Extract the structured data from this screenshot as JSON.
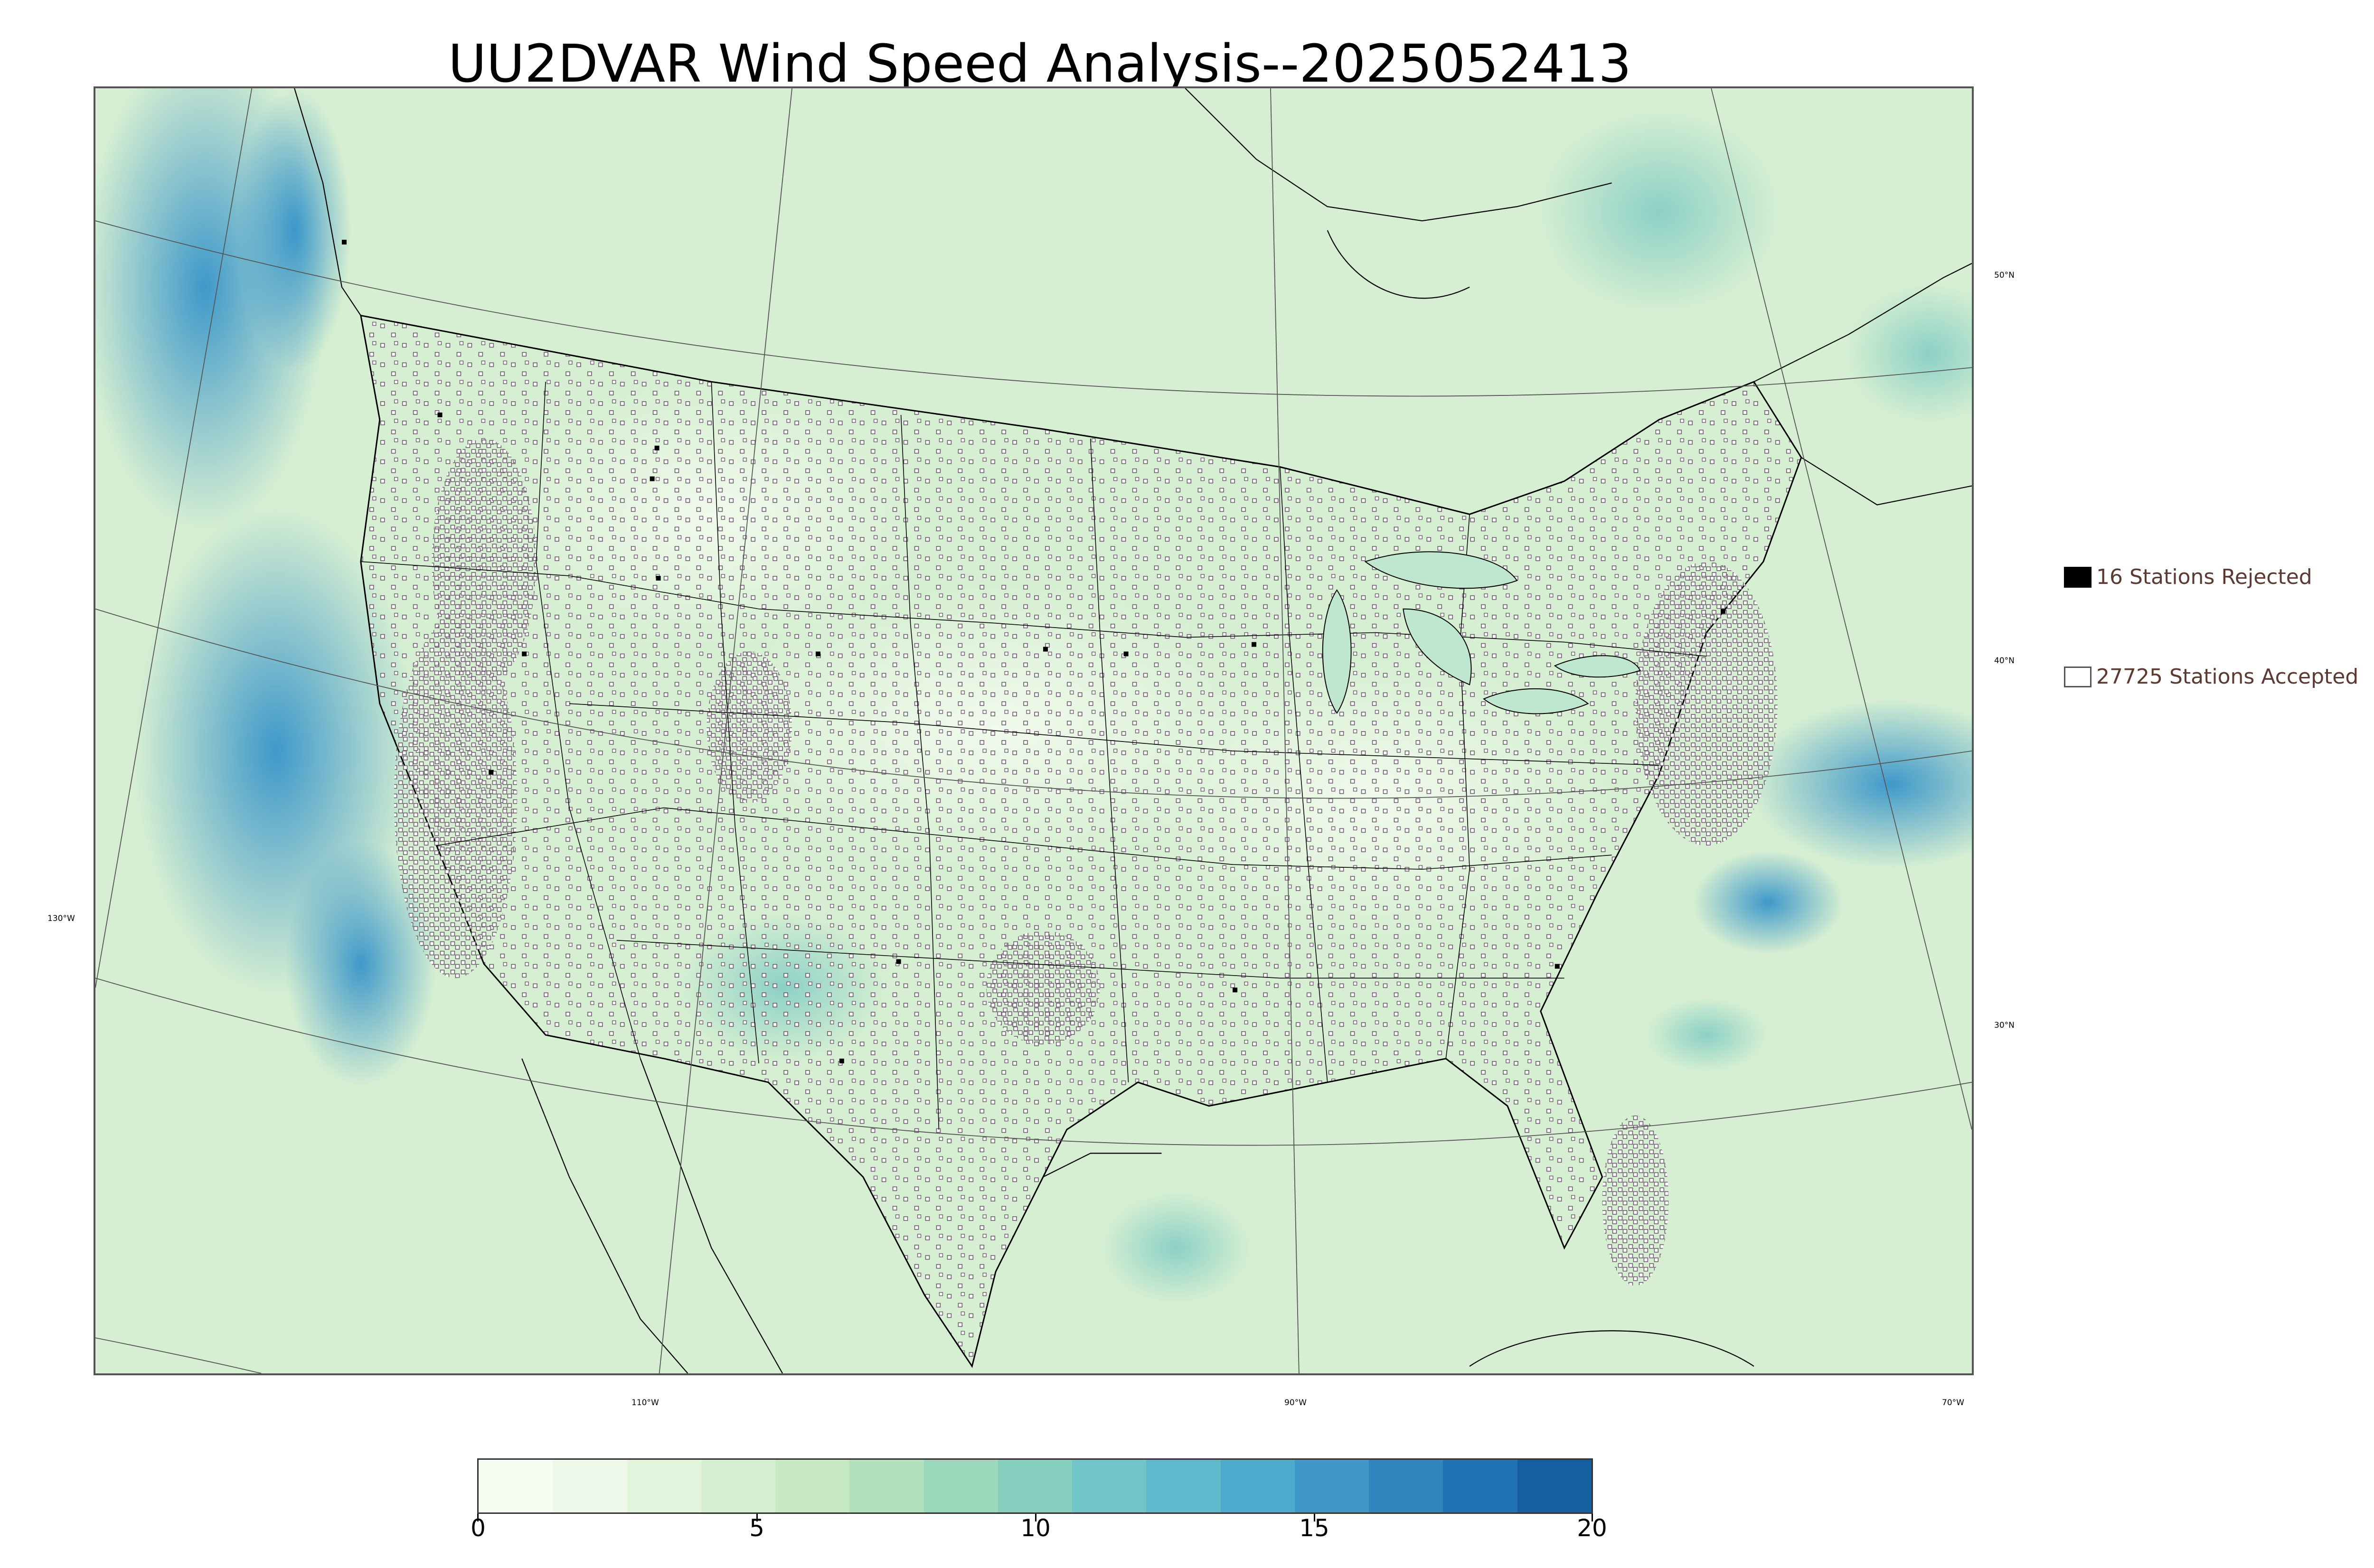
{
  "title": "UU2DVAR Wind Speed Analysis--2025052413",
  "map": {
    "lat_labels": [
      "50°N",
      "40°N",
      "30°N"
    ],
    "lon_labels": [
      "130°W",
      "110°W",
      "90°W",
      "70°W"
    ],
    "colors": {
      "ocean_low": "#e6f5e0",
      "land_base": "#d6efd2",
      "strong_wind": "#2e8fc9",
      "station_marker": "#6a5a6a",
      "boundary": "#000000",
      "graticule": "#555555"
    }
  },
  "legend": {
    "rejected": "16 Stations Rejected",
    "accepted": "27725 Stations Accepted"
  },
  "colorbar": {
    "ticks": [
      "0",
      "5",
      "10",
      "15",
      "20"
    ],
    "range": [
      0,
      20
    ],
    "colors": [
      "#f7fcf0",
      "#eef8e8",
      "#e3f4dd",
      "#d6efd2",
      "#c6e9c4",
      "#b3e1bd",
      "#9cd8bb",
      "#86cfbf",
      "#72c5c6",
      "#5eb9cc",
      "#4eaacd",
      "#3f98c7",
      "#2f86bf",
      "#1f72b3",
      "#145fa0"
    ]
  }
}
